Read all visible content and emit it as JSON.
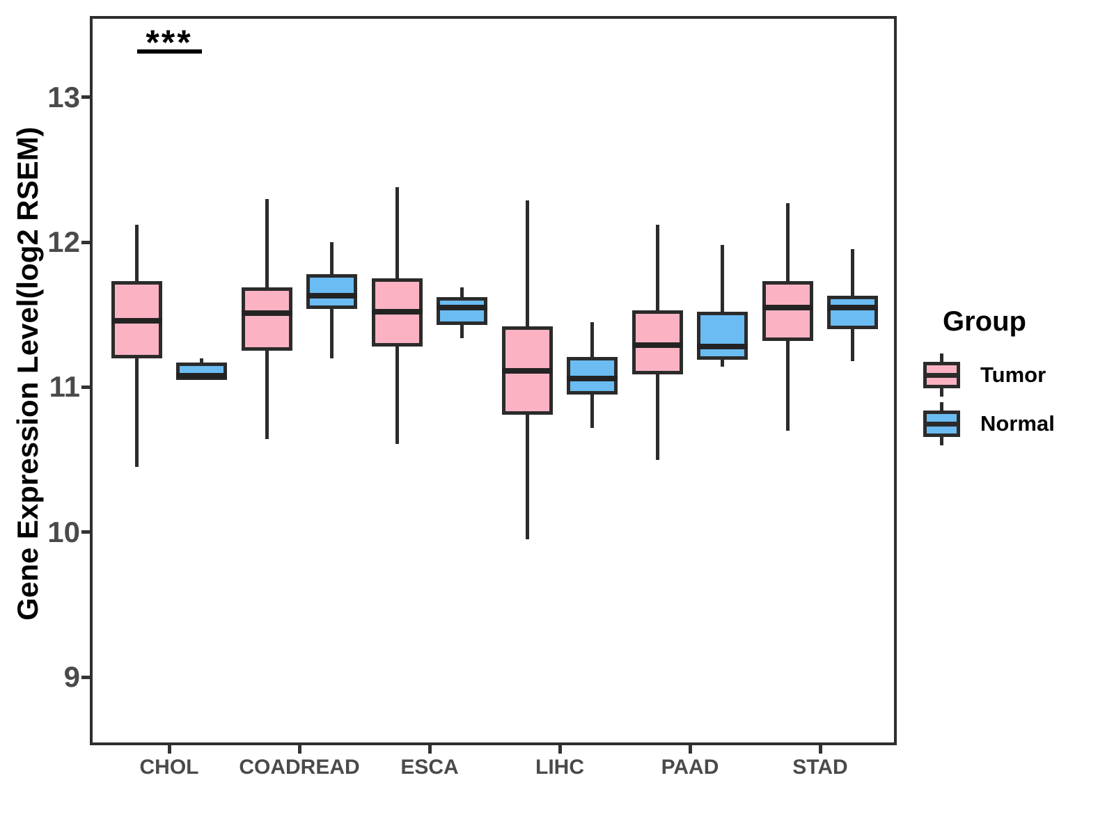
{
  "y_axis": {
    "title": "Gene Expression Level(log2 RSEM)"
  },
  "legend": {
    "title": "Group",
    "items": [
      {
        "label": "Tumor",
        "color": "#FBB3C3"
      },
      {
        "label": "Normal",
        "color": "#6BBCF2"
      }
    ]
  },
  "chart_data": {
    "type": "boxplot",
    "title": "",
    "xlabel": "",
    "ylabel": "Gene Expression Level(log2 RSEM)",
    "categories": [
      "CHOL",
      "COADREAD",
      "ESCA",
      "LIHC",
      "PAAD",
      "STAD"
    ],
    "yticks": [
      9,
      10,
      11,
      12,
      13
    ],
    "ylim": [
      8.53,
      13.56
    ],
    "grid": false,
    "legend_position": "right",
    "line_color": "#2b2b2b",
    "series": [
      {
        "name": "Tumor",
        "fill": "#FBB3C3",
        "boxes": [
          {
            "category": "CHOL",
            "whisker_low": 10.45,
            "q1": 11.2,
            "median": 11.46,
            "q3": 11.73,
            "whisker_high": 12.12
          },
          {
            "category": "COADREAD",
            "whisker_low": 10.64,
            "q1": 11.25,
            "median": 11.51,
            "q3": 11.69,
            "whisker_high": 12.3
          },
          {
            "category": "ESCA",
            "whisker_low": 10.61,
            "q1": 11.28,
            "median": 11.52,
            "q3": 11.75,
            "whisker_high": 12.38
          },
          {
            "category": "LIHC",
            "whisker_low": 9.95,
            "q1": 10.81,
            "median": 11.11,
            "q3": 11.42,
            "whisker_high": 12.29
          },
          {
            "category": "PAAD",
            "whisker_low": 10.5,
            "q1": 11.09,
            "median": 11.29,
            "q3": 11.53,
            "whisker_high": 12.12
          },
          {
            "category": "STAD",
            "whisker_low": 10.7,
            "q1": 11.32,
            "median": 11.55,
            "q3": 11.73,
            "whisker_high": 12.27
          }
        ]
      },
      {
        "name": "Normal",
        "fill": "#6BBCF2",
        "boxes": [
          {
            "category": "CHOL",
            "whisker_low": 11.05,
            "q1": 11.05,
            "median": 11.08,
            "q3": 11.17,
            "whisker_high": 11.2
          },
          {
            "category": "COADREAD",
            "whisker_low": 11.2,
            "q1": 11.54,
            "median": 11.63,
            "q3": 11.78,
            "whisker_high": 12.0
          },
          {
            "category": "ESCA",
            "whisker_low": 11.34,
            "q1": 11.43,
            "median": 11.55,
            "q3": 11.62,
            "whisker_high": 11.69
          },
          {
            "category": "LIHC",
            "whisker_low": 10.72,
            "q1": 10.95,
            "median": 11.06,
            "q3": 11.21,
            "whisker_high": 11.45
          },
          {
            "category": "PAAD",
            "whisker_low": 11.14,
            "q1": 11.19,
            "median": 11.28,
            "q3": 11.52,
            "whisker_high": 11.98
          },
          {
            "category": "STAD",
            "whisker_low": 11.18,
            "q1": 11.4,
            "median": 11.55,
            "q3": 11.63,
            "whisker_high": 11.95
          }
        ]
      }
    ],
    "significance": [
      {
        "category": "CHOL",
        "label": "***"
      }
    ]
  }
}
